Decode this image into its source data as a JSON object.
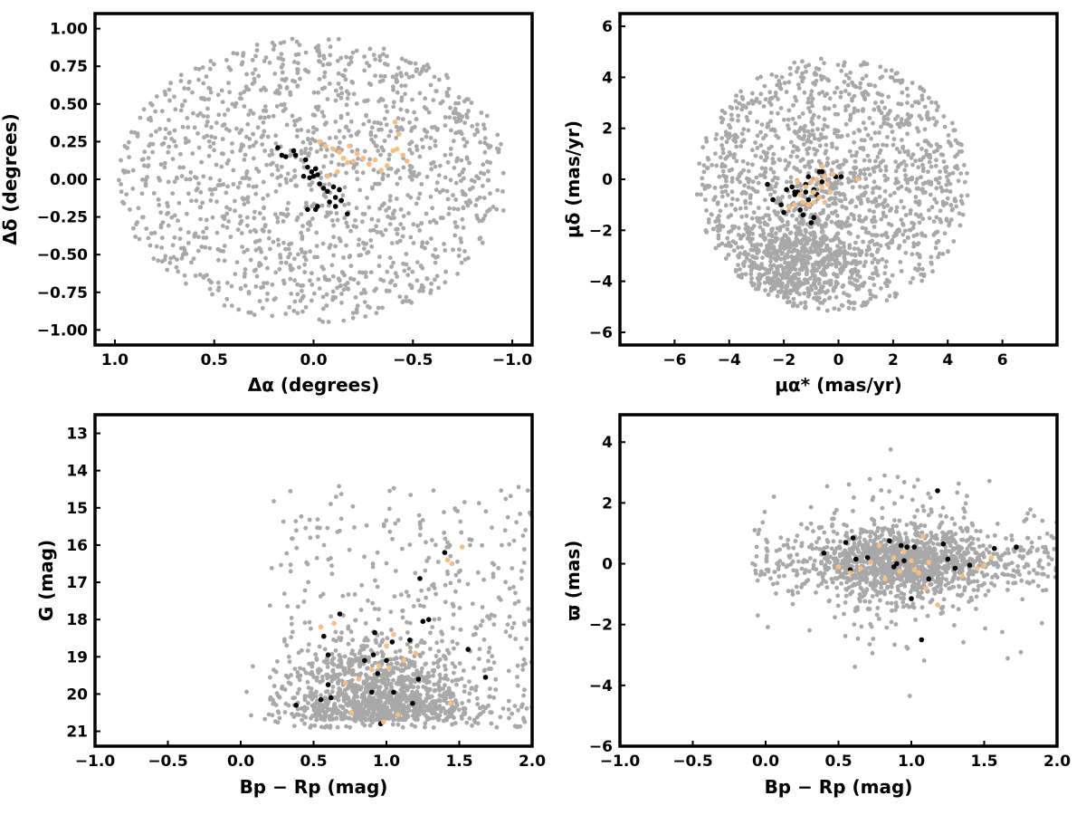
{
  "colors": {
    "field": "#a8a8a8",
    "members_black": "#000000",
    "members_orange": "#f7be7d"
  },
  "chart_data": [
    {
      "id": "sky",
      "type": "scatter",
      "xlabel": "Δα (degrees)",
      "ylabel": "Δδ (degrees)",
      "xlim": [
        1.1,
        -1.1
      ],
      "ylim": [
        -1.1,
        1.1
      ],
      "x_inverted": true,
      "xticks": [
        1.0,
        0.5,
        0.0,
        -0.5,
        -1.0
      ],
      "xtick_labels": [
        "1.0",
        "0.5",
        "0.0",
        "−0.5",
        "−1.0"
      ],
      "yticks": [
        1.0,
        0.75,
        0.5,
        0.25,
        0.0,
        -0.25,
        -0.5,
        -0.75,
        -1.0
      ],
      "ytick_labels": [
        "1.00",
        "0.75",
        "0.50",
        "0.25",
        "0.00",
        "−0.25",
        "−0.50",
        "−0.75",
        "−1.00"
      ],
      "grid": false,
      "field_distribution": {
        "shape": "disk",
        "center": [
          0.0,
          0.0
        ],
        "radius": 1.0,
        "count": 1400,
        "note": "uniform grey field stars"
      },
      "series": [
        {
          "color_key": "members_black",
          "points": [
            [
              0.18,
              0.21
            ],
            [
              0.16,
              0.16
            ],
            [
              0.14,
              0.15
            ],
            [
              0.1,
              0.19
            ],
            [
              0.09,
              0.16
            ],
            [
              0.04,
              0.13
            ],
            [
              0.03,
              0.08
            ],
            [
              0.01,
              0.05
            ],
            [
              -0.01,
              0.07
            ],
            [
              -0.02,
              0.03
            ],
            [
              0.0,
              0.02
            ],
            [
              0.02,
              0.01
            ],
            [
              0.05,
              0.02
            ],
            [
              -0.03,
              -0.03
            ],
            [
              -0.05,
              -0.06
            ],
            [
              -0.07,
              -0.08
            ],
            [
              -0.1,
              -0.05
            ],
            [
              -0.13,
              -0.07
            ],
            [
              -0.11,
              -0.12
            ],
            [
              -0.14,
              -0.14
            ],
            [
              -0.08,
              -0.15
            ],
            [
              -0.11,
              -0.18
            ],
            [
              -0.17,
              -0.23
            ],
            [
              -0.02,
              -0.18
            ],
            [
              -0.01,
              -0.2
            ],
            [
              0.03,
              -0.2
            ]
          ]
        },
        {
          "color_key": "members_orange",
          "points": [
            [
              -0.03,
              0.25
            ],
            [
              -0.06,
              0.22
            ],
            [
              -0.1,
              0.2
            ],
            [
              -0.13,
              0.18
            ],
            [
              -0.15,
              0.14
            ],
            [
              -0.17,
              0.11
            ],
            [
              -0.2,
              0.12
            ],
            [
              -0.22,
              0.17
            ],
            [
              -0.18,
              0.22
            ],
            [
              -0.25,
              0.14
            ],
            [
              -0.28,
              0.1
            ],
            [
              -0.31,
              0.13
            ],
            [
              -0.34,
              0.06
            ],
            [
              -0.37,
              0.09
            ],
            [
              -0.4,
              0.19
            ],
            [
              -0.42,
              0.2
            ],
            [
              -0.43,
              0.3
            ],
            [
              -0.41,
              0.38
            ],
            [
              -0.45,
              0.16
            ],
            [
              -0.47,
              0.12
            ],
            [
              -0.12,
              0.05
            ],
            [
              -0.07,
              0.02
            ]
          ]
        }
      ]
    },
    {
      "id": "proper-motion",
      "type": "scatter",
      "xlabel": "μα*  (mas/yr)",
      "ylabel": "μδ (mas/yr)",
      "xlim": [
        -8,
        8
      ],
      "ylim": [
        -6.5,
        6.5
      ],
      "xticks": [
        -6,
        -4,
        -2,
        0,
        2,
        4,
        6
      ],
      "xtick_labels": [
        "−6",
        "−4",
        "−2",
        "0",
        "2",
        "4",
        "6"
      ],
      "yticks": [
        6,
        4,
        2,
        0,
        -2,
        -4,
        -6
      ],
      "ytick_labels": [
        "6",
        "4",
        "2",
        "0",
        "−2",
        "−4",
        "−6"
      ],
      "grid": false,
      "field_distribution": {
        "shape": "disk",
        "center": [
          -0.2,
          -0.2
        ],
        "radius": 5.0,
        "count": 1400,
        "extra_clump": {
          "center": [
            -1.5,
            -3.2
          ],
          "count": 600
        },
        "note": "grey field stars concentrated toward negative μδ"
      },
      "series": [
        {
          "color_key": "members_black",
          "points": [
            [
              -2.6,
              -0.2
            ],
            [
              -2.4,
              -0.8
            ],
            [
              -2.1,
              -1.0
            ],
            [
              -2.0,
              -1.3
            ],
            [
              -1.9,
              -0.4
            ],
            [
              -1.7,
              -0.3
            ],
            [
              -1.6,
              -0.6
            ],
            [
              -1.5,
              -0.5
            ],
            [
              -1.4,
              -1.2
            ],
            [
              -1.3,
              -1.4
            ],
            [
              -1.2,
              -0.2
            ],
            [
              -1.1,
              -0.8
            ],
            [
              -1.0,
              -1.7
            ],
            [
              -0.9,
              -1.5
            ],
            [
              -0.8,
              -0.6
            ],
            [
              -0.7,
              0.3
            ],
            [
              -0.6,
              -0.1
            ],
            [
              -1.1,
              0.1
            ],
            [
              -0.6,
              0.3
            ],
            [
              -0.1,
              0.1
            ],
            [
              0.1,
              0.1
            ],
            [
              -1.2,
              -0.5
            ],
            [
              -0.9,
              -0.4
            ],
            [
              -1.6,
              -0.5
            ]
          ]
        },
        {
          "color_key": "members_orange",
          "points": [
            [
              -1.5,
              -0.1
            ],
            [
              -1.4,
              -0.6
            ],
            [
              -1.3,
              -0.9
            ],
            [
              -1.2,
              -0.3
            ],
            [
              -1.1,
              -1.0
            ],
            [
              -1.0,
              -0.1
            ],
            [
              -0.9,
              -0.5
            ],
            [
              -0.8,
              0.0
            ],
            [
              -0.7,
              -0.7
            ],
            [
              -0.6,
              -0.3
            ],
            [
              -0.5,
              -0.9
            ],
            [
              -0.4,
              -0.2
            ],
            [
              -0.3,
              -0.5
            ],
            [
              -0.2,
              0.2
            ],
            [
              -0.6,
              0.5
            ],
            [
              -1.8,
              -1.1
            ],
            [
              -1.6,
              -1.0
            ],
            [
              -0.9,
              -0.9
            ],
            [
              0.7,
              0.0
            ],
            [
              -0.5,
              0.1
            ]
          ]
        }
      ]
    },
    {
      "id": "cmd",
      "type": "scatter",
      "xlabel": "Bp − Rp (mag)",
      "ylabel": "G (mag)",
      "xlim": [
        -1.0,
        2.0
      ],
      "ylim": [
        21.4,
        12.5
      ],
      "y_inverted": true,
      "xticks": [
        -1.0,
        -0.5,
        0.0,
        0.5,
        1.0,
        1.5,
        2.0
      ],
      "xtick_labels": [
        "−1.0",
        "−0.5",
        "0.0",
        "0.5",
        "1.0",
        "1.5",
        "2.0"
      ],
      "yticks": [
        21,
        20,
        19,
        18,
        17,
        16,
        15,
        14,
        13
      ],
      "ytick_labels": [
        "21",
        "20",
        "19",
        "18",
        "17",
        "16",
        "15",
        "14",
        "13"
      ],
      "grid": false,
      "field_distribution": {
        "shape": "color-magnitude band",
        "color_range": [
          -0.1,
          2.0
        ],
        "mag_range": [
          12.8,
          20.9
        ],
        "count": 1500,
        "note": "grey field stars dense at faint end near color 0.9"
      },
      "series": [
        {
          "color_key": "members_black",
          "points": [
            [
              0.38,
              20.3
            ],
            [
              0.55,
              20.15
            ],
            [
              0.62,
              20.1
            ],
            [
              0.6,
              19.75
            ],
            [
              0.96,
              20.8
            ],
            [
              0.9,
              19.95
            ],
            [
              1.05,
              19.95
            ],
            [
              1.18,
              20.25
            ],
            [
              1.22,
              19.6
            ],
            [
              0.94,
              19.45
            ],
            [
              0.85,
              19.1
            ],
            [
              0.91,
              18.95
            ],
            [
              0.6,
              18.95
            ],
            [
              0.57,
              18.45
            ],
            [
              0.68,
              17.85
            ],
            [
              0.92,
              18.35
            ],
            [
              1.04,
              18.6
            ],
            [
              1.16,
              18.55
            ],
            [
              1.25,
              18.05
            ],
            [
              1.29,
              18.0
            ],
            [
              1.23,
              16.9
            ],
            [
              1.4,
              16.2
            ],
            [
              1.56,
              18.8
            ],
            [
              1.68,
              19.55
            ],
            [
              1.0,
              19.1
            ]
          ]
        },
        {
          "color_key": "members_orange",
          "points": [
            [
              0.76,
              20.5
            ],
            [
              0.98,
              20.75
            ],
            [
              1.08,
              20.55
            ],
            [
              0.72,
              19.7
            ],
            [
              0.81,
              19.6
            ],
            [
              0.9,
              19.35
            ],
            [
              1.02,
              19.3
            ],
            [
              1.12,
              19.1
            ],
            [
              1.2,
              18.9
            ],
            [
              0.55,
              18.2
            ],
            [
              0.64,
              18.1
            ],
            [
              1.05,
              18.4
            ],
            [
              1.45,
              16.5
            ],
            [
              1.42,
              16.4
            ],
            [
              1.52,
              16.05
            ],
            [
              1.44,
              20.25
            ],
            [
              0.95,
              19.25
            ],
            [
              1.0,
              18.7
            ]
          ]
        }
      ]
    },
    {
      "id": "parallax",
      "type": "scatter",
      "xlabel": "Bp − Rp (mag)",
      "ylabel": "ϖ (mas)",
      "xlim": [
        -1.0,
        2.0
      ],
      "ylim": [
        -6.0,
        4.9
      ],
      "xticks": [
        -1.0,
        -0.5,
        0.0,
        0.5,
        1.0,
        1.5,
        2.0
      ],
      "xtick_labels": [
        "−1.0",
        "−0.5",
        "0.0",
        "0.5",
        "1.0",
        "1.5",
        "2.0"
      ],
      "yticks": [
        4,
        2,
        0,
        -2,
        -4,
        -6
      ],
      "ytick_labels": [
        "4",
        "2",
        "0",
        "−2",
        "−4",
        "−6"
      ],
      "grid": false,
      "field_distribution": {
        "shape": "horizontal band",
        "color_range": [
          -0.1,
          2.0
        ],
        "center_mag": 0.0,
        "count": 1500,
        "note": "grey field stars centered near ϖ=0 with tails to ±4"
      },
      "series": [
        {
          "color_key": "members_black",
          "points": [
            [
              0.4,
              0.35
            ],
            [
              0.55,
              0.7
            ],
            [
              0.58,
              -0.2
            ],
            [
              0.62,
              0.15
            ],
            [
              0.6,
              0.85
            ],
            [
              0.7,
              0.2
            ],
            [
              0.85,
              0.75
            ],
            [
              0.93,
              0.6
            ],
            [
              0.97,
              0.55
            ],
            [
              0.9,
              0.0
            ],
            [
              0.95,
              0.1
            ],
            [
              1.0,
              -1.15
            ],
            [
              1.07,
              -2.5
            ],
            [
              1.12,
              -0.5
            ],
            [
              1.18,
              2.4
            ],
            [
              1.22,
              0.65
            ],
            [
              1.25,
              0.15
            ],
            [
              1.3,
              -0.15
            ],
            [
              1.4,
              -0.05
            ],
            [
              1.57,
              0.5
            ],
            [
              1.72,
              0.55
            ],
            [
              1.02,
              0.55
            ],
            [
              0.88,
              -0.1
            ]
          ]
        },
        {
          "color_key": "members_orange",
          "points": [
            [
              0.5,
              -0.1
            ],
            [
              0.58,
              -0.3
            ],
            [
              0.65,
              -0.15
            ],
            [
              0.72,
              0.05
            ],
            [
              0.78,
              0.6
            ],
            [
              0.82,
              -0.5
            ],
            [
              0.88,
              0.2
            ],
            [
              0.95,
              0.4
            ],
            [
              1.02,
              -0.2
            ],
            [
              1.05,
              -0.3
            ],
            [
              1.08,
              0.9
            ],
            [
              1.12,
              0.05
            ],
            [
              1.18,
              -1.35
            ],
            [
              1.35,
              -0.4
            ],
            [
              1.45,
              -0.15
            ],
            [
              1.5,
              -0.05
            ],
            [
              1.55,
              0.2
            ],
            [
              0.92,
              -0.25
            ],
            [
              1.0,
              0.1
            ],
            [
              1.1,
              -0.8
            ]
          ]
        }
      ]
    }
  ]
}
